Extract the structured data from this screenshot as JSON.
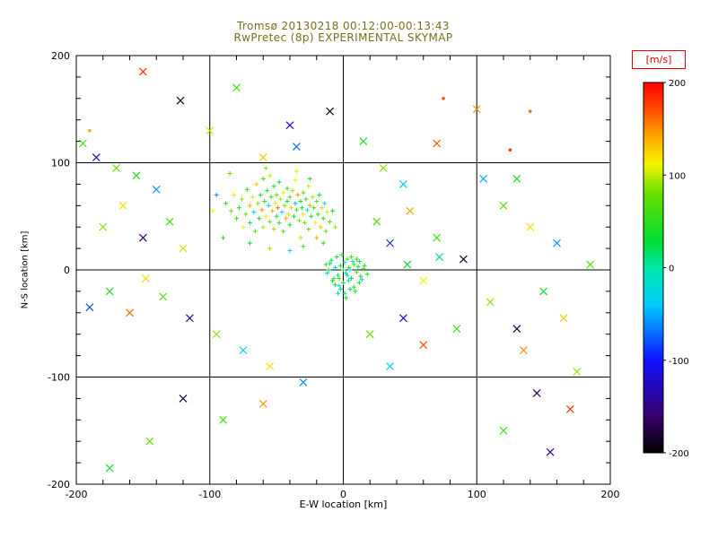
{
  "title": {
    "line1": "Tromsø 20130218 00:12:00-00:13:43",
    "line2": "RwPretec (8p) EXPERIMENTAL SKYMAP"
  },
  "colors": {
    "title_text": "#77701a",
    "axis": "#000000",
    "colorbar_label": "#e80000",
    "background": "#ffffff"
  },
  "chart_data": {
    "type": "scatter",
    "title": "Tromsø 20130218 00:12:00-00:13:43",
    "subtitle": "RwPretec (8p) EXPERIMENTAL SKYMAP",
    "xlabel": "E-W location [km]",
    "ylabel": "N-S location [km]",
    "xlim": [
      -200,
      200
    ],
    "ylim": [
      -200,
      200
    ],
    "xticks": [
      -200,
      -100,
      0,
      100,
      200
    ],
    "yticks": [
      -200,
      -100,
      0,
      100,
      200
    ],
    "minor_tick_step": 20,
    "grid": true,
    "legend_position": "none",
    "colorbar": {
      "label": "[m/s]",
      "min": -200,
      "max": 200,
      "ticks": [
        200,
        100,
        0,
        -100,
        -200
      ],
      "stops": [
        {
          "pos": 0.0,
          "color": "#000000"
        },
        {
          "pos": 0.1,
          "color": "#38006e"
        },
        {
          "pos": 0.25,
          "color": "#1010ff"
        },
        {
          "pos": 0.4,
          "color": "#00ccff"
        },
        {
          "pos": 0.5,
          "color": "#00e8a8"
        },
        {
          "pos": 0.57,
          "color": "#00dd33"
        },
        {
          "pos": 0.7,
          "color": "#66e000"
        },
        {
          "pos": 0.78,
          "color": "#f5f500"
        },
        {
          "pos": 0.86,
          "color": "#ffa000"
        },
        {
          "pos": 0.93,
          "color": "#ff4800"
        },
        {
          "pos": 1.0,
          "color": "#ff0000"
        }
      ]
    },
    "point_fields": [
      "x_km",
      "y_km",
      "velocity_m_per_s",
      "marker_style"
    ],
    "points": [
      [
        -88,
        62,
        40
      ],
      [
        -84,
        55,
        80
      ],
      [
        -82,
        70,
        120
      ],
      [
        -80,
        48,
        60
      ],
      [
        -78,
        58,
        30
      ],
      [
        -76,
        66,
        90
      ],
      [
        -75,
        40,
        110
      ],
      [
        -73,
        52,
        70
      ],
      [
        -72,
        75,
        50
      ],
      [
        -70,
        60,
        140
      ],
      [
        -70,
        44,
        20
      ],
      [
        -68,
        68,
        100
      ],
      [
        -67,
        54,
        -20
      ],
      [
        -66,
        36,
        60
      ],
      [
        -65,
        80,
        130
      ],
      [
        -64,
        62,
        85
      ],
      [
        -63,
        48,
        45
      ],
      [
        -62,
        70,
        25
      ],
      [
        -61,
        56,
        150
      ],
      [
        -60,
        40,
        95
      ],
      [
        -60,
        85,
        70
      ],
      [
        -59,
        64,
        55
      ],
      [
        -58,
        50,
        120
      ],
      [
        -57,
        74,
        35
      ],
      [
        -56,
        60,
        -40
      ],
      [
        -55,
        45,
        80
      ],
      [
        -55,
        88,
        100
      ],
      [
        -54,
        68,
        60
      ],
      [
        -53,
        55,
        140
      ],
      [
        -52,
        38,
        90
      ],
      [
        -52,
        78,
        40
      ],
      [
        -51,
        62,
        110
      ],
      [
        -50,
        50,
        20
      ],
      [
        -50,
        70,
        75
      ],
      [
        -49,
        58,
        160
      ],
      [
        -48,
        44,
        50
      ],
      [
        -48,
        82,
        30
      ],
      [
        -47,
        66,
        95
      ],
      [
        -46,
        54,
        -30
      ],
      [
        -45,
        72,
        120
      ],
      [
        -45,
        36,
        65
      ],
      [
        -44,
        60,
        85
      ],
      [
        -43,
        48,
        140
      ],
      [
        -42,
        76,
        55
      ],
      [
        -42,
        64,
        25
      ],
      [
        -41,
        52,
        100
      ],
      [
        -40,
        68,
        70
      ],
      [
        -40,
        42,
        45
      ],
      [
        -39,
        58,
        130
      ],
      [
        -38,
        74,
        90
      ],
      [
        -37,
        50,
        35
      ],
      [
        -36,
        62,
        -50
      ],
      [
        -36,
        84,
        110
      ],
      [
        -35,
        56,
        60
      ],
      [
        -34,
        70,
        150
      ],
      [
        -33,
        46,
        80
      ],
      [
        -32,
        64,
        40
      ],
      [
        -32,
        30,
        95
      ],
      [
        -31,
        58,
        20
      ],
      [
        -30,
        72,
        65
      ],
      [
        -30,
        52,
        120
      ],
      [
        -29,
        44,
        85
      ],
      [
        -28,
        66,
        50
      ],
      [
        -27,
        56,
        -20
      ],
      [
        -26,
        78,
        100
      ],
      [
        -26,
        38,
        70
      ],
      [
        -25,
        60,
        140
      ],
      [
        -24,
        50,
        30
      ],
      [
        -23,
        68,
        90
      ],
      [
        -22,
        58,
        55
      ],
      [
        -21,
        44,
        110
      ],
      [
        -20,
        64,
        75
      ],
      [
        -19,
        52,
        45
      ],
      [
        -18,
        70,
        25
      ],
      [
        -17,
        40,
        130
      ],
      [
        -16,
        58,
        95
      ],
      [
        -15,
        48,
        60
      ],
      [
        -14,
        62,
        -40
      ],
      [
        -13,
        36,
        80
      ],
      [
        -12,
        54,
        105
      ],
      [
        -90,
        30,
        50
      ],
      [
        -85,
        90,
        70
      ],
      [
        -95,
        70,
        -60
      ],
      [
        -58,
        95,
        85
      ],
      [
        -35,
        92,
        120
      ],
      [
        -25,
        85,
        40
      ],
      [
        -70,
        25,
        30
      ],
      [
        -55,
        20,
        90
      ],
      [
        -40,
        18,
        -30
      ],
      [
        -30,
        22,
        60
      ],
      [
        -98,
        55,
        110
      ],
      [
        -20,
        30,
        140
      ],
      [
        -15,
        25,
        50
      ],
      [
        -10,
        45,
        70
      ],
      [
        -8,
        55,
        35
      ],
      [
        -6,
        40,
        90
      ],
      [
        0,
        0,
        20
      ],
      [
        2,
        -3,
        -10
      ],
      [
        -2,
        4,
        40
      ],
      [
        4,
        2,
        60
      ],
      [
        -4,
        -5,
        10
      ],
      [
        6,
        -8,
        30
      ],
      [
        -6,
        2,
        -20
      ],
      [
        8,
        5,
        50
      ],
      [
        -8,
        -10,
        25
      ],
      [
        10,
        -2,
        70
      ],
      [
        -10,
        6,
        15
      ],
      [
        12,
        -12,
        40
      ],
      [
        -3,
        -15,
        -30
      ],
      [
        3,
        10,
        55
      ],
      [
        5,
        -18,
        20
      ],
      [
        -5,
        12,
        35
      ],
      [
        7,
        8,
        -15
      ],
      [
        9,
        -20,
        45
      ],
      [
        -7,
        -8,
        60
      ],
      [
        11,
        3,
        25
      ],
      [
        1,
        -22,
        10
      ],
      [
        -1,
        14,
        50
      ],
      [
        13,
        -6,
        30
      ],
      [
        -12,
        -3,
        -25
      ],
      [
        15,
        1,
        65
      ],
      [
        2,
        -26,
        40
      ],
      [
        -2,
        -18,
        15
      ],
      [
        4,
        -10,
        -35
      ],
      [
        6,
        12,
        55
      ],
      [
        -9,
        9,
        20
      ],
      [
        0,
        -12,
        35
      ],
      [
        8,
        -16,
        50
      ],
      [
        -4,
        -22,
        10
      ],
      [
        14,
        -9,
        -20
      ],
      [
        16,
        4,
        45
      ],
      [
        -11,
        0,
        30
      ],
      [
        1,
        7,
        -10
      ],
      [
        -6,
        -14,
        25
      ],
      [
        10,
        10,
        60
      ],
      [
        3,
        -5,
        15
      ],
      [
        18,
        -4,
        40
      ],
      [
        -13,
        5,
        55
      ],
      [
        5,
        0,
        -25
      ],
      [
        -3,
        -8,
        70
      ],
      [
        12,
        8,
        20
      ],
      [
        -150,
        185,
        180,
        1
      ],
      [
        -122,
        158,
        -180,
        1
      ],
      [
        -80,
        170,
        60,
        1
      ],
      [
        -10,
        148,
        -190,
        1
      ],
      [
        100,
        150,
        150,
        1
      ],
      [
        70,
        118,
        170,
        1
      ],
      [
        140,
        148,
        160,
        2
      ],
      [
        125,
        112,
        180,
        2
      ],
      [
        -190,
        130,
        140,
        2
      ],
      [
        -195,
        118,
        60,
        1
      ],
      [
        -185,
        105,
        -120,
        1
      ],
      [
        -170,
        95,
        80,
        1
      ],
      [
        -155,
        88,
        40,
        1
      ],
      [
        -140,
        75,
        -60,
        1
      ],
      [
        -165,
        60,
        120,
        1
      ],
      [
        -180,
        40,
        90,
        1
      ],
      [
        -150,
        30,
        -160,
        1
      ],
      [
        -130,
        45,
        60,
        1
      ],
      [
        -120,
        20,
        100,
        1
      ],
      [
        -175,
        -20,
        50,
        1
      ],
      [
        -160,
        -40,
        160,
        1
      ],
      [
        -190,
        -35,
        -80,
        1
      ],
      [
        -135,
        -25,
        70,
        1
      ],
      [
        -115,
        -45,
        -140,
        1
      ],
      [
        -95,
        -60,
        90,
        1
      ],
      [
        -75,
        -75,
        -40,
        1
      ],
      [
        -55,
        -90,
        120,
        1
      ],
      [
        -120,
        -120,
        -180,
        1
      ],
      [
        -90,
        -140,
        60,
        1
      ],
      [
        -145,
        -160,
        80,
        1
      ],
      [
        -175,
        -185,
        40,
        1
      ],
      [
        -60,
        -125,
        150,
        1
      ],
      [
        -30,
        -105,
        -60,
        1
      ],
      [
        20,
        -60,
        80,
        1
      ],
      [
        45,
        -45,
        -120,
        1
      ],
      [
        60,
        -70,
        170,
        1
      ],
      [
        85,
        -55,
        60,
        1
      ],
      [
        35,
        -90,
        -30,
        1
      ],
      [
        110,
        -30,
        90,
        1
      ],
      [
        130,
        -55,
        -170,
        1
      ],
      [
        150,
        -20,
        40,
        1
      ],
      [
        165,
        -45,
        130,
        1
      ],
      [
        145,
        -115,
        -170,
        1
      ],
      [
        170,
        -130,
        180,
        1
      ],
      [
        120,
        -150,
        60,
        1
      ],
      [
        155,
        -170,
        -150,
        1
      ],
      [
        175,
        -95,
        90,
        1
      ],
      [
        185,
        5,
        70,
        1
      ],
      [
        160,
        25,
        -60,
        1
      ],
      [
        140,
        40,
        120,
        1
      ],
      [
        120,
        60,
        80,
        1
      ],
      [
        90,
        10,
        -180,
        1
      ],
      [
        70,
        30,
        60,
        1
      ],
      [
        50,
        55,
        140,
        1
      ],
      [
        45,
        80,
        -40,
        1
      ],
      [
        30,
        95,
        90,
        1
      ],
      [
        15,
        120,
        50,
        1
      ],
      [
        -35,
        115,
        -70,
        1
      ],
      [
        -60,
        105,
        130,
        1
      ],
      [
        105,
        85,
        -50,
        1
      ],
      [
        130,
        85,
        40,
        1
      ],
      [
        60,
        -10,
        110,
        1
      ],
      [
        35,
        25,
        -90,
        1
      ],
      [
        25,
        45,
        70,
        1
      ],
      [
        -100,
        130,
        100,
        1
      ],
      [
        -40,
        135,
        -110,
        1
      ],
      [
        135,
        -75,
        150,
        1
      ],
      [
        75,
        160,
        170,
        2
      ],
      [
        -148,
        -8,
        120,
        1
      ],
      [
        48,
        5,
        30,
        1
      ],
      [
        72,
        12,
        10,
        1
      ]
    ]
  }
}
